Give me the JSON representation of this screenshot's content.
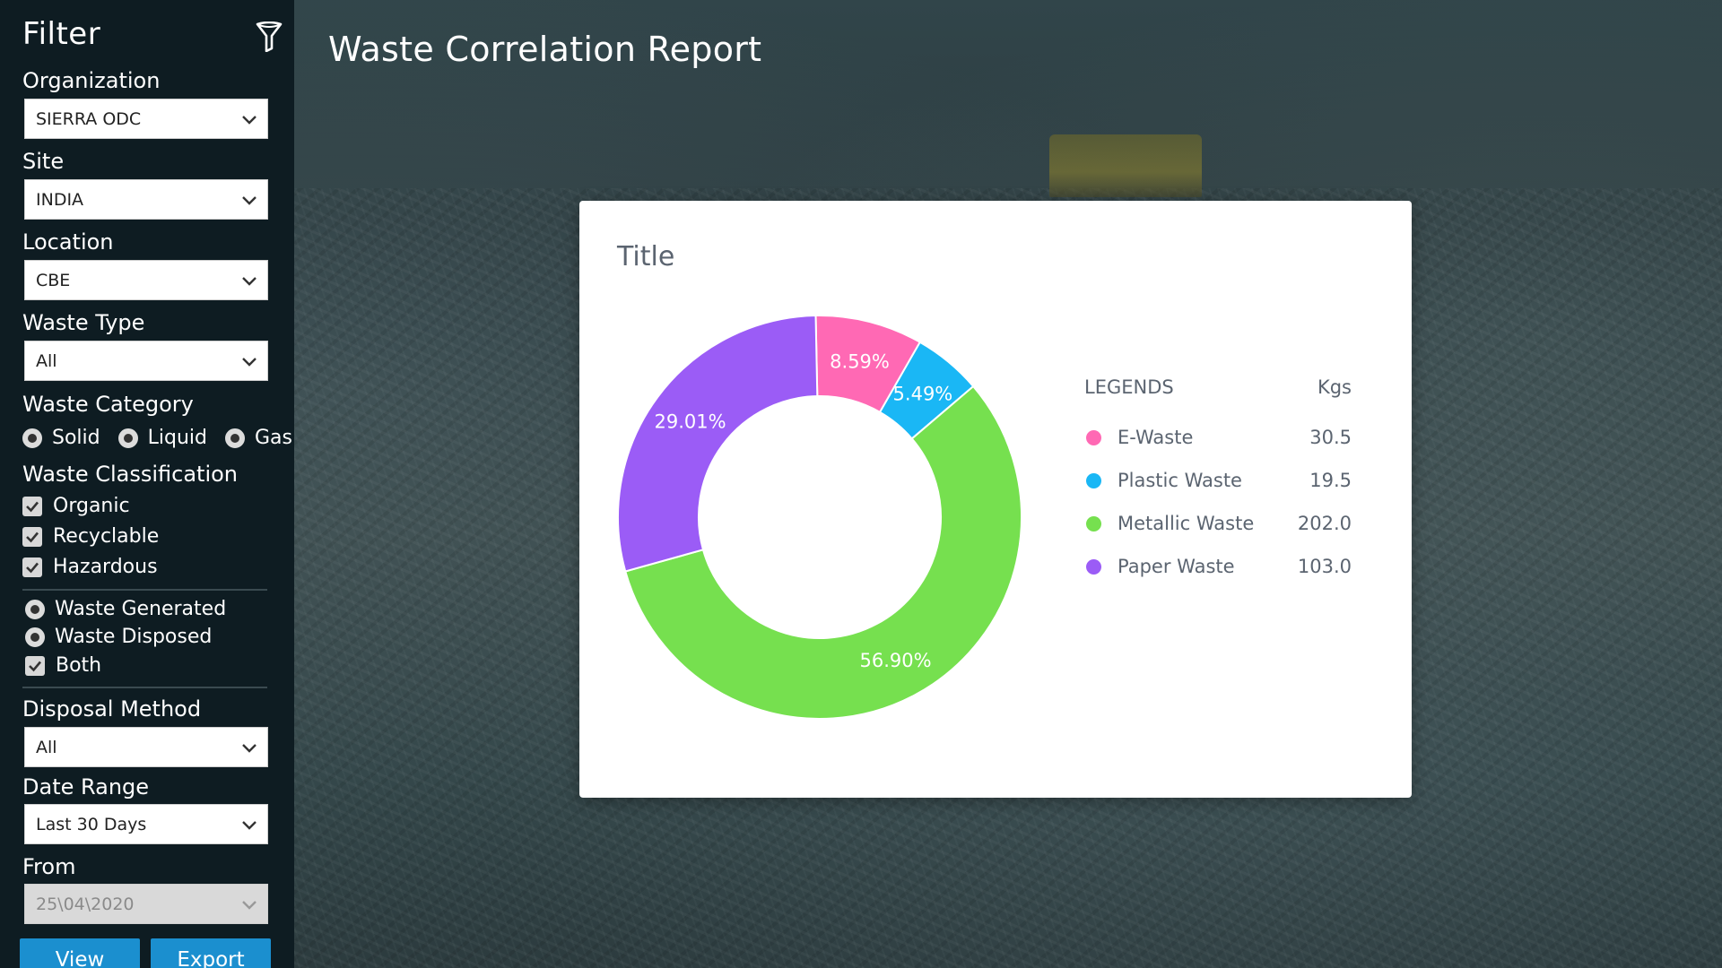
{
  "sidebar": {
    "title": "Filter",
    "organization": {
      "label": "Organization",
      "value": "SIERRA ODC"
    },
    "site": {
      "label": "Site",
      "value": "INDIA"
    },
    "location": {
      "label": "Location",
      "value": "CBE"
    },
    "waste_type": {
      "label": "Waste Type",
      "value": "All"
    },
    "waste_category": {
      "label": "Waste Category",
      "options": [
        "Solid",
        "Liquid",
        "Gas"
      ]
    },
    "waste_classification": {
      "label": "Waste Classification",
      "options": [
        "Organic",
        "Recyclable",
        "Hazardous"
      ]
    },
    "mode": {
      "options": [
        "Waste Generated",
        "Waste Disposed",
        "Both"
      ]
    },
    "disposal_method": {
      "label": "Disposal Method",
      "value": "All"
    },
    "date_range": {
      "label": "Date Range",
      "value": "Last 30 Days"
    },
    "from": {
      "label": "From",
      "value": "25\\04\\2020"
    },
    "buttons": {
      "view": "View",
      "export": "Export"
    }
  },
  "header": {
    "title": "Waste Correlation Report"
  },
  "card": {
    "title": "Title",
    "legend_header": "LEGENDS",
    "unit_header": "Kgs"
  },
  "chart_data": {
    "type": "pie",
    "title": "Title",
    "categories": [
      "E-Waste",
      "Plastic Waste",
      "Metallic Waste",
      "Paper Waste"
    ],
    "values": [
      30.5,
      19.5,
      202.0,
      103.0
    ],
    "percent_labels": [
      "8.59%",
      "5.49%",
      "56.90%",
      "29.01%"
    ],
    "colors": [
      "#ff69b4",
      "#1ab7f5",
      "#76e04f",
      "#9b5cf6"
    ],
    "donut": true,
    "legend_position": "right"
  },
  "colors": {
    "sidebar_bg": "#0e1c22",
    "button": "#1b8fcf"
  }
}
